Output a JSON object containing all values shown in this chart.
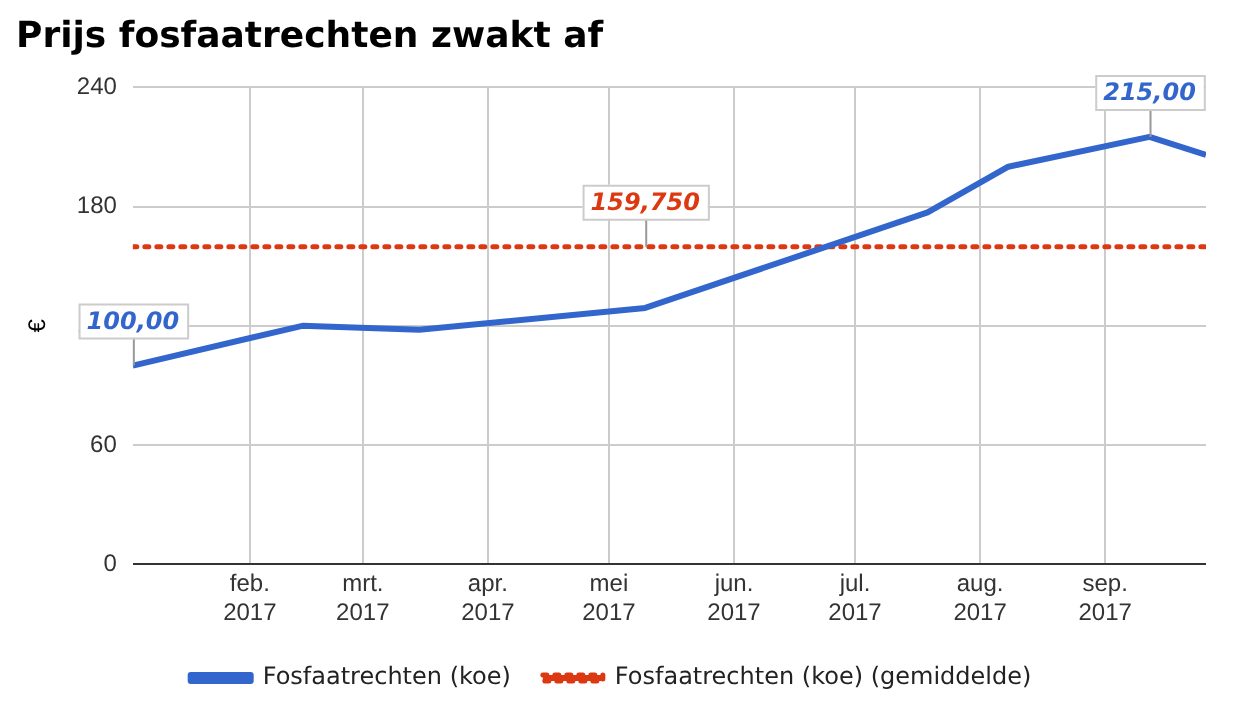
{
  "chart_data": {
    "type": "line",
    "title": "Prijs fosfaatrechten zwakt af",
    "ylabel": "€",
    "x": [
      "2017-01-03",
      "2017-02-14",
      "2017-03-15",
      "2017-05-10",
      "2017-07-19",
      "2017-08-08",
      "2017-09-12",
      "2017-09-26"
    ],
    "series": [
      {
        "name": "Fosfaatrechten (koe)",
        "color": "#3366cc",
        "line_style": "solid",
        "values": [
          100,
          120,
          118,
          129,
          177,
          200,
          215,
          206
        ]
      },
      {
        "name": "Fosfaatrechten (koe) (gemiddelde)",
        "color": "#dc3912",
        "line_style": "dotted",
        "x": [
          "2017-01-03",
          "2017-09-26"
        ],
        "values": [
          159.75,
          159.75
        ]
      }
    ],
    "annotations": [
      {
        "text": "100,00",
        "x": "2017-01-03",
        "y": 100
      },
      {
        "text": "159,750",
        "x": "2017-05-10",
        "y": 159.75
      },
      {
        "text": "215,00",
        "x": "2017-09-12",
        "y": 215
      }
    ],
    "xlim": [
      "2017-01-03",
      "2017-09-26"
    ],
    "xticks": [
      {
        "value": "2017-02-01",
        "label": "feb. 2017"
      },
      {
        "value": "2017-03-01",
        "label": "mrt. 2017"
      },
      {
        "value": "2017-04-01",
        "label": "apr. 2017"
      },
      {
        "value": "2017-05-01",
        "label": "mei 2017"
      },
      {
        "value": "2017-06-01",
        "label": "jun. 2017"
      },
      {
        "value": "2017-07-01",
        "label": "jul. 2017"
      },
      {
        "value": "2017-08-01",
        "label": "aug. 2017"
      },
      {
        "value": "2017-09-01",
        "label": "sep. 2017"
      }
    ],
    "ylim": [
      0,
      240
    ],
    "yticks": [
      0,
      60,
      120,
      180,
      240
    ],
    "grid": true,
    "legend": "bottom",
    "marker": "none"
  }
}
